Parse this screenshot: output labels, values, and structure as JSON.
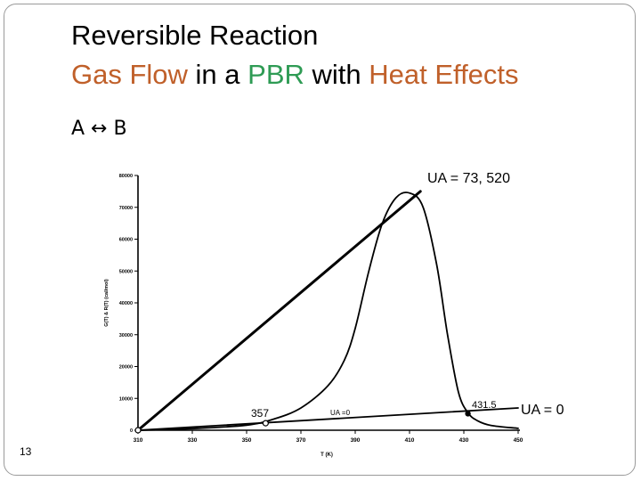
{
  "title": {
    "line1": "Reversible Reaction",
    "line2_parts": [
      {
        "text": "Gas Flow",
        "color": "#c0602a"
      },
      {
        "text": " in a ",
        "color": "#000000"
      },
      {
        "text": "PBR",
        "color": "#2e9b54"
      },
      {
        "text": " with ",
        "color": "#000000"
      },
      {
        "text": "Heat Effects",
        "color": "#c0602a"
      }
    ]
  },
  "equation": "A ↔ B",
  "labels": {
    "ua_high": "UA = 73, 520",
    "ua_zero": "UA = 0"
  },
  "page_number": "13",
  "chart_data": {
    "type": "line",
    "xlabel": "T (K)",
    "ylabel": "G(T) & R(T) (cal/mol)",
    "xlim": [
      310,
      450
    ],
    "ylim": [
      0,
      80000
    ],
    "x_ticks": [
      "310",
      "330",
      "350",
      "370",
      "390",
      "410",
      "430",
      "450"
    ],
    "y_ticks": [
      "0",
      "10000",
      "20000",
      "30000",
      "40000",
      "50000",
      "60000",
      "70000",
      "80000"
    ],
    "series": [
      {
        "name": "G(T)",
        "points": [
          [
            310,
            0
          ],
          [
            330,
            500
          ],
          [
            350,
            1600
          ],
          [
            360,
            3500
          ],
          [
            370,
            7000
          ],
          [
            380,
            14000
          ],
          [
            386,
            22000
          ],
          [
            390,
            32000
          ],
          [
            395,
            50000
          ],
          [
            400,
            65000
          ],
          [
            405,
            73000
          ],
          [
            410,
            74500
          ],
          [
            415,
            70000
          ],
          [
            420,
            52000
          ],
          [
            424,
            30000
          ],
          [
            428,
            12000
          ],
          [
            431.5,
            5500
          ],
          [
            435,
            3000
          ],
          [
            440,
            1500
          ],
          [
            450,
            600
          ]
        ]
      },
      {
        "name": "R(T), UA = 73,520",
        "points": [
          [
            310,
            0
          ],
          [
            414,
            75000
          ]
        ]
      },
      {
        "name": "R(T), UA = 0",
        "points": [
          [
            310,
            0
          ],
          [
            450,
            7000
          ]
        ]
      }
    ],
    "annotations": [
      {
        "text": "357",
        "x": 357,
        "y": 2200
      },
      {
        "text": "431.5",
        "x": 431.5,
        "y": 5500
      },
      {
        "text": "UA =0",
        "x": 375,
        "y": 4000
      }
    ]
  }
}
